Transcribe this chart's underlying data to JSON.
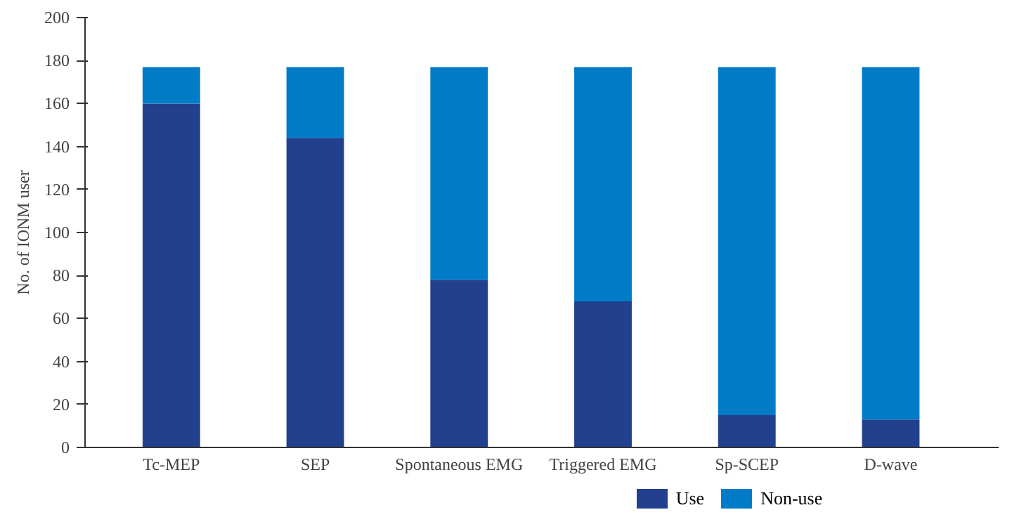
{
  "chart_data": {
    "type": "bar",
    "stacked": true,
    "ylabel": "No. of IONM user",
    "categories": [
      "Tc-MEP",
      "SEP",
      "Spontaneous EMG",
      "Triggered EMG",
      "Sp-SCEP",
      "D-wave"
    ],
    "series": [
      {
        "name": "Use",
        "color": "#23408e",
        "values": [
          160,
          144,
          78,
          68,
          15,
          13
        ]
      },
      {
        "name": "Non-use",
        "color": "#007bc7",
        "values": [
          17,
          33,
          99,
          109,
          162,
          164
        ]
      }
    ],
    "ylim": [
      0,
      200
    ],
    "yticks": [
      0,
      20,
      40,
      60,
      80,
      100,
      120,
      140,
      160,
      180,
      200
    ],
    "grid": false,
    "legend": "bottom"
  }
}
